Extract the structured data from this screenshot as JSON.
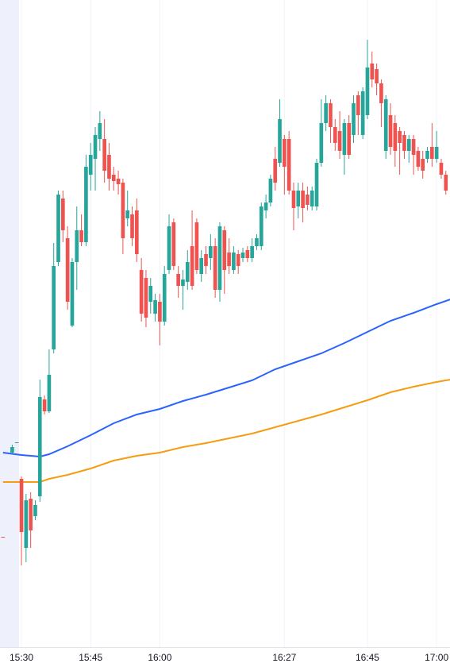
{
  "chart_data": {
    "type": "candlestick",
    "up_color": "#26a69a",
    "down_color": "#ef5350",
    "x": [
      -4,
      -2,
      -1,
      0,
      1,
      2,
      3,
      4,
      5,
      6,
      7,
      8,
      9,
      10,
      11,
      12,
      13,
      14,
      15,
      16,
      17,
      18,
      19,
      20,
      21,
      22,
      23,
      24,
      25,
      26,
      27,
      28,
      29,
      30,
      31,
      32,
      33,
      34,
      35,
      36,
      37,
      38,
      39,
      40,
      41,
      42,
      43,
      44,
      45,
      46,
      47,
      48,
      49,
      50,
      51,
      52,
      53,
      54,
      55,
      56,
      57,
      58,
      59,
      60,
      61,
      62,
      63,
      64,
      65,
      66,
      67,
      68,
      69,
      70,
      71,
      72,
      73,
      74,
      75,
      76,
      77,
      78,
      79,
      80,
      81,
      82,
      83,
      84,
      85,
      86,
      87,
      88,
      89,
      90,
      91,
      92
    ],
    "open": [
      139,
      245,
      257,
      212,
      125,
      187,
      165,
      190,
      312,
      297,
      375,
      485,
      565,
      515,
      405,
      485,
      525,
      510,
      595,
      615,
      640,
      640,
      620,
      595,
      590,
      585,
      540,
      545,
      550,
      475,
      465,
      435,
      420,
      435,
      410,
      475,
      535,
      470,
      455,
      460,
      505,
      535,
      470,
      495,
      490,
      505,
      450,
      525,
      497,
      475,
      495,
      490,
      500,
      490,
      505,
      505,
      550,
      560,
      615,
      610,
      640,
      640,
      575,
      555,
      575,
      570,
      555,
      555,
      610,
      660,
      685,
      655,
      650,
      620,
      660,
      645,
      695,
      645,
      670,
      735,
      728,
      710,
      625,
      670,
      660,
      650,
      645,
      625,
      640,
      625,
      615,
      615,
      630,
      615,
      610,
      595
    ],
    "high": [
      139,
      255,
      258,
      215,
      193,
      195,
      185,
      337,
      317,
      375,
      509,
      575,
      575,
      530,
      490,
      555,
      545,
      620,
      635,
      655,
      675,
      665,
      635,
      605,
      600,
      590,
      575,
      555,
      565,
      490,
      475,
      465,
      445,
      445,
      480,
      545,
      540,
      480,
      475,
      500,
      550,
      540,
      500,
      505,
      520,
      515,
      535,
      530,
      515,
      505,
      500,
      503,
      505,
      515,
      520,
      560,
      570,
      595,
      630,
      690,
      645,
      650,
      585,
      585,
      585,
      580,
      580,
      615,
      690,
      695,
      690,
      665,
      675,
      665,
      670,
      695,
      700,
      705,
      765,
      750,
      735,
      715,
      695,
      685,
      670,
      655,
      650,
      645,
      645,
      630,
      625,
      630,
      660,
      650,
      615,
      600
    ],
    "low": [
      138,
      244,
      257,
      103,
      107,
      125,
      160,
      183,
      293,
      295,
      370,
      480,
      510,
      425,
      403,
      450,
      505,
      505,
      575,
      575,
      625,
      585,
      575,
      575,
      570,
      495,
      530,
      505,
      485,
      410,
      403,
      420,
      410,
      380,
      405,
      470,
      475,
      440,
      425,
      450,
      450,
      470,
      460,
      470,
      475,
      440,
      435,
      445,
      470,
      470,
      470,
      485,
      485,
      485,
      500,
      500,
      540,
      555,
      575,
      605,
      570,
      570,
      525,
      540,
      535,
      550,
      550,
      550,
      605,
      650,
      635,
      625,
      615,
      595,
      615,
      635,
      645,
      640,
      665,
      705,
      695,
      655,
      615,
      620,
      605,
      595,
      615,
      610,
      595,
      600,
      590,
      610,
      605,
      610,
      590,
      570
    ],
    "close": [
      138,
      252,
      258,
      145,
      185,
      147,
      179,
      315,
      297,
      343,
      480,
      570,
      525,
      435,
      485,
      525,
      510,
      605,
      620,
      645,
      660,
      600,
      590,
      587,
      583,
      515,
      550,
      515,
      495,
      420,
      415,
      455,
      437,
      410,
      470,
      530,
      480,
      455,
      463,
      485,
      455,
      475,
      490,
      480,
      505,
      450,
      530,
      475,
      480,
      497,
      480,
      497,
      490,
      505,
      515,
      555,
      560,
      590,
      585,
      665,
      605,
      575,
      553,
      575,
      553,
      557,
      575,
      610,
      660,
      685,
      655,
      635,
      625,
      660,
      620,
      685,
      670,
      700,
      730,
      715,
      710,
      685,
      690,
      630,
      625,
      635,
      625,
      640,
      620,
      605,
      600,
      625,
      615,
      630,
      595,
      575
    ],
    "lines": [
      {
        "color": "#2962ff",
        "x": [
          -4,
          0,
          4,
          6,
          10,
          15,
          20,
          25,
          30,
          35,
          40,
          45,
          50,
          55,
          60,
          65,
          70,
          75,
          80,
          85,
          90,
          93
        ],
        "values": [
          245,
          242,
          240,
          243,
          253,
          267,
          282,
          293,
          300,
          310,
          318,
          327,
          336,
          350,
          360,
          370,
          383,
          397,
          411,
          421,
          432,
          438
        ]
      },
      {
        "color": "#f59c10",
        "x": [
          -4,
          0,
          4,
          6,
          10,
          15,
          20,
          25,
          30,
          35,
          40,
          45,
          50,
          55,
          60,
          65,
          70,
          75,
          80,
          85,
          90,
          93
        ],
        "values": [
          208,
          208,
          208,
          212,
          217,
          225,
          235,
          241,
          245,
          252,
          257,
          263,
          269,
          277,
          285,
          293,
          302,
          311,
          321,
          328,
          334,
          337
        ]
      }
    ],
    "xlim": [
      -4.65,
      92.9
    ],
    "xticks": [
      {
        "value": 0,
        "label": "15:30"
      },
      {
        "value": 15,
        "label": "15:45"
      },
      {
        "value": 30,
        "label": "16:00"
      },
      {
        "value": 57,
        "label": "16:27"
      },
      {
        "value": 75,
        "label": "16:45"
      },
      {
        "value": 90,
        "label": "17:00"
      }
    ],
    "ylim": [
      0,
      815
    ],
    "grid": true
  }
}
